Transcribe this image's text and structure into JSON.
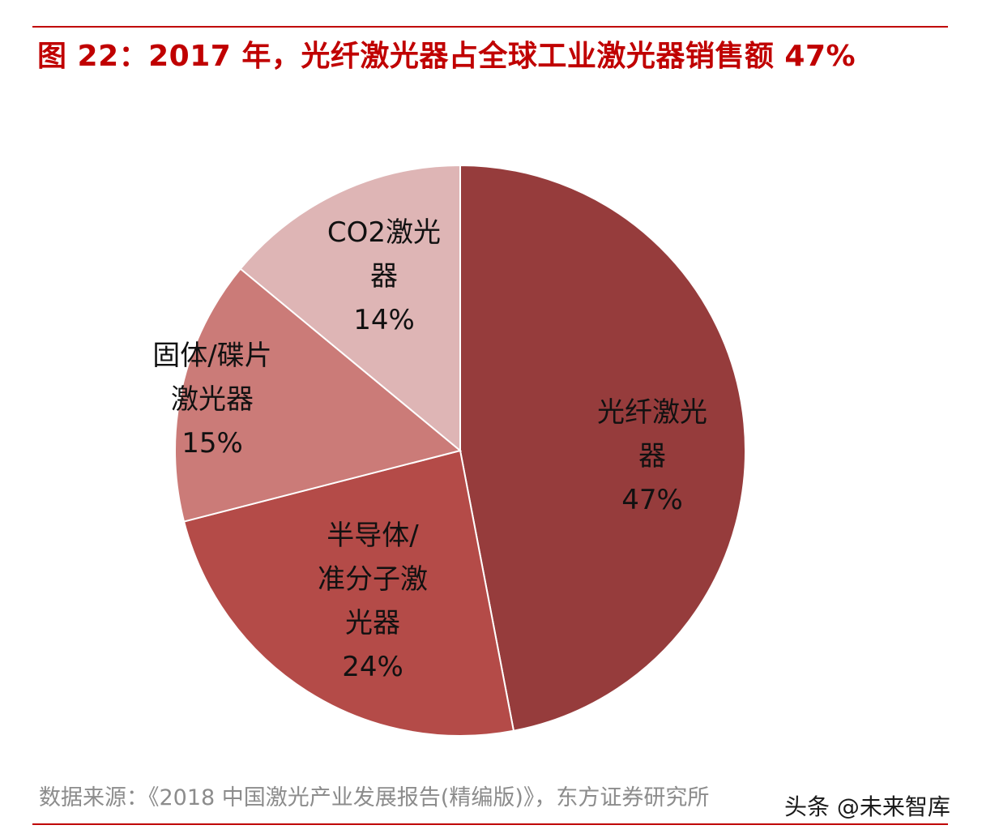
{
  "title": "图 22：2017 年，光纤激光器占全球工业激光器销售额 47%",
  "chart_data": {
    "type": "pie",
    "slices": [
      {
        "label_lines": [
          "光纤激光",
          "器"
        ],
        "percent_label": "47%",
        "value": 47,
        "color": "#963c3c"
      },
      {
        "label_lines": [
          "半导体/",
          "准分子激",
          "光器"
        ],
        "percent_label": "24%",
        "value": 24,
        "color": "#b44b48"
      },
      {
        "label_lines": [
          "固体/碟片",
          "激光器"
        ],
        "percent_label": "15%",
        "value": 15,
        "color": "#cb7b78"
      },
      {
        "label_lines": [
          "CO2激光",
          "器"
        ],
        "percent_label": "14%",
        "value": 14,
        "color": "#deb5b5"
      }
    ]
  },
  "source": "数据来源：《2018 中国激光产业发展报告(精编版)》，东方证券研究所",
  "watermark": "头条 @未来智库"
}
